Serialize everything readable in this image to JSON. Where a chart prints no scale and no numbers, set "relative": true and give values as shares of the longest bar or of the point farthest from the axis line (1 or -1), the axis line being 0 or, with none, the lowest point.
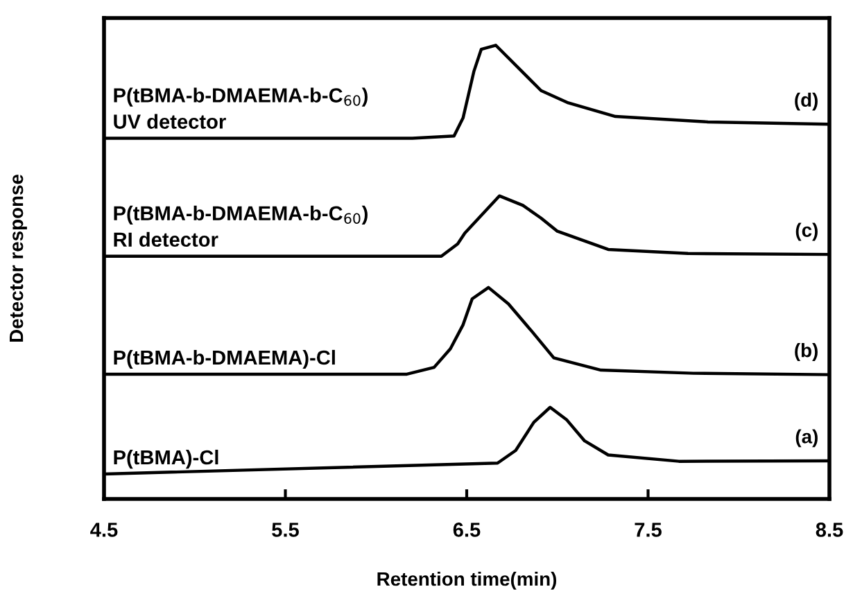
{
  "chart_data": {
    "type": "line",
    "relative": true,
    "xlabel": "Retention time(min)",
    "ylabel": "Detector response",
    "xlim": [
      4.5,
      8.5
    ],
    "xticks": [
      4.5,
      5.5,
      6.5,
      7.5,
      8.5
    ],
    "tick_labels": "x",
    "grid": false,
    "legend": false,
    "marker": "none",
    "line_style": "solid",
    "series": [
      {
        "name": "P(tBMA-b-DMAEMA-b-C$_{60}$)\nUV detector",
        "color": "#000000",
        "x": [
          4.5,
          6.2,
          6.43,
          6.48,
          6.54,
          6.58,
          6.66,
          6.91,
          7.06,
          7.32,
          7.83,
          8.5
        ],
        "values": [
          0.795,
          0.795,
          0.8,
          0.84,
          0.943,
          0.991,
          1.0,
          0.9,
          0.873,
          0.843,
          0.831,
          0.826
        ]
      },
      {
        "name": "P(tBMA-b-DMAEMA-b-C$_{60}$)\nRI detector",
        "color": "#000000",
        "x": [
          4.5,
          6.36,
          6.45,
          6.49,
          6.68,
          6.81,
          6.91,
          7.0,
          7.28,
          7.72,
          8.5
        ],
        "values": [
          0.535,
          0.535,
          0.562,
          0.586,
          0.668,
          0.647,
          0.619,
          0.59,
          0.55,
          0.541,
          0.539
        ]
      },
      {
        "name": "P(tBMA-b-DMAEMA)-Cl",
        "color": "#000000",
        "x": [
          4.5,
          6.17,
          6.32,
          6.41,
          6.48,
          6.53,
          6.62,
          6.73,
          6.86,
          6.98,
          7.24,
          7.75,
          8.5
        ],
        "values": [
          0.275,
          0.275,
          0.29,
          0.331,
          0.384,
          0.441,
          0.466,
          0.43,
          0.369,
          0.311,
          0.284,
          0.277,
          0.274
        ]
      },
      {
        "name": "P(tBMA)-Cl",
        "color": "#000000",
        "x": [
          4.5,
          6.67,
          6.77,
          6.87,
          6.96,
          7.05,
          7.15,
          7.28,
          7.67,
          8.5
        ],
        "values": [
          0.055,
          0.079,
          0.107,
          0.169,
          0.202,
          0.175,
          0.128,
          0.097,
          0.083,
          0.084
        ]
      }
    ],
    "annotations": [
      "(d)",
      "(c)",
      "(b)",
      "(a)"
    ]
  }
}
